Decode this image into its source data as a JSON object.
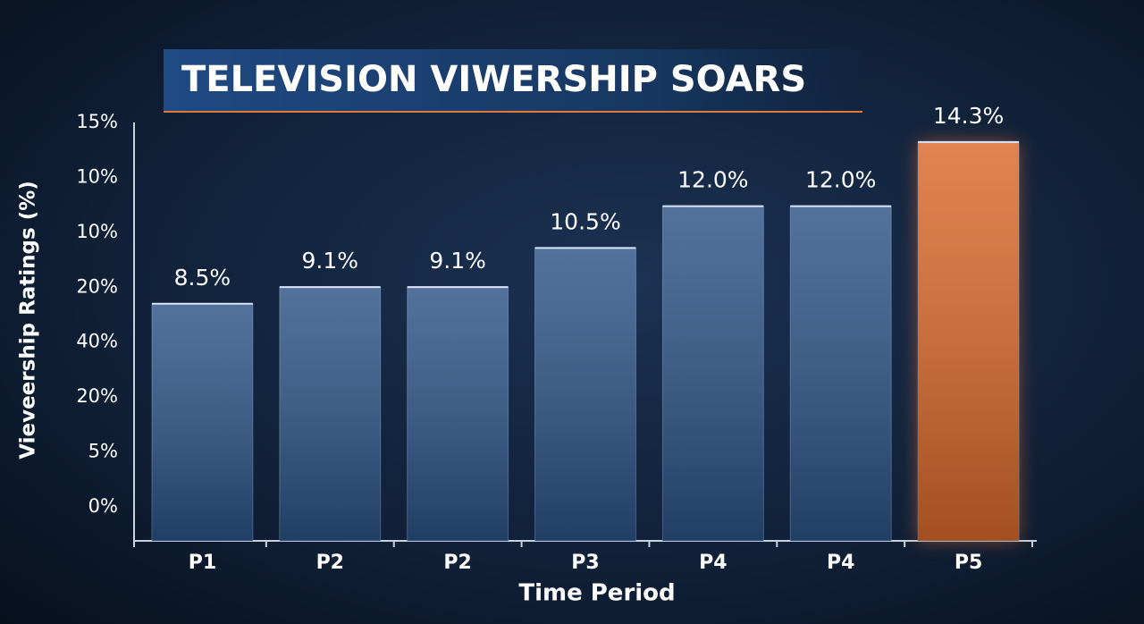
{
  "chart_data": {
    "type": "bar",
    "title": "TELEVISION VIWERSHIP SOARS",
    "y_label": "Vieveership Ratings (%)",
    "x_label": "Time Period",
    "y_axis_labels": [
      "15%",
      "10%",
      "10%",
      "20%",
      "40%",
      "20%",
      "5%",
      "0%"
    ],
    "categories": [
      "P1",
      "P2",
      "P2",
      "P3",
      "P4",
      "P4",
      "P5"
    ],
    "values": [
      8.5,
      9.1,
      9.1,
      10.5,
      12.0,
      12.0,
      14.3
    ],
    "value_labels": [
      "8.5%",
      "9.1%",
      "9.1%",
      "10.5%",
      "12.0%",
      "12.0%",
      "14.3%"
    ],
    "colors": [
      "#2c5386",
      "#2c5386",
      "#2c5386",
      "#2c5386",
      "#2c5386",
      "#2c5386",
      "#d9692a"
    ],
    "ylim": [
      0,
      15
    ]
  }
}
